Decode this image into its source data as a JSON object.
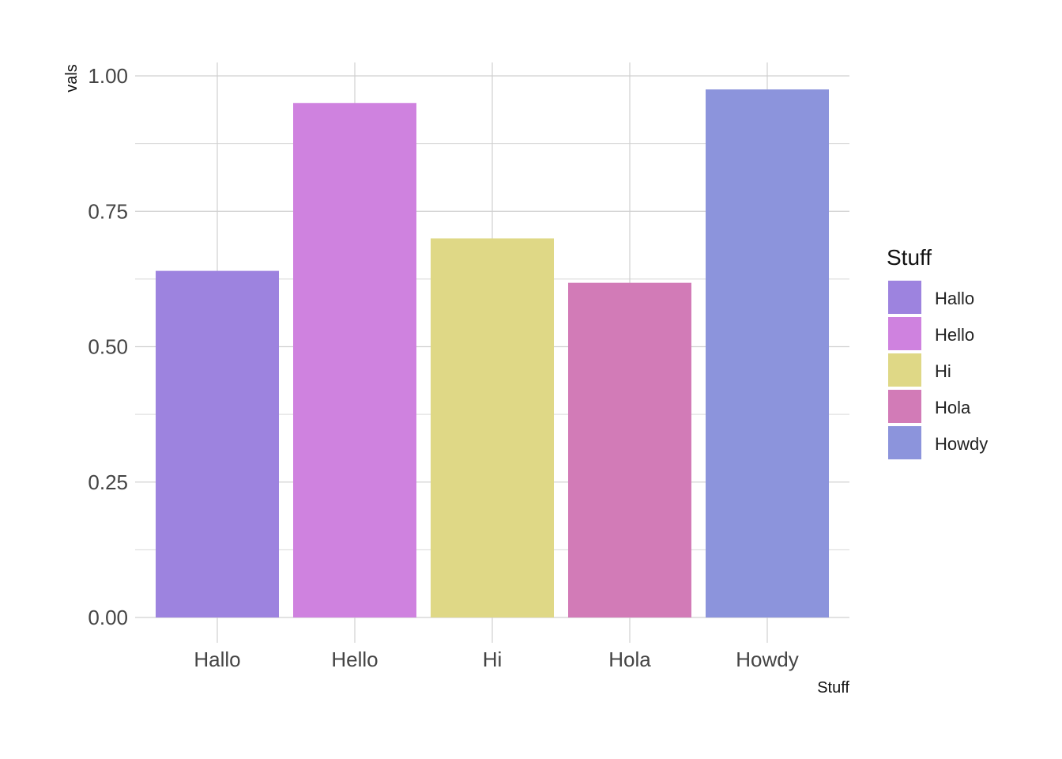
{
  "chart_data": {
    "type": "bar",
    "categories": [
      "Hallo",
      "Hello",
      "Hi",
      "Hola",
      "Howdy"
    ],
    "values": [
      0.64,
      0.95,
      0.7,
      0.618,
      0.975
    ],
    "colors": [
      "#9d83df",
      "#cf82df",
      "#dfd886",
      "#d27bb7",
      "#8c94dc"
    ],
    "title": "",
    "xlabel": "Stuff",
    "ylabel": "vals",
    "ylim": [
      0,
      1.0
    ],
    "yticks": [
      "0.00",
      "0.25",
      "0.50",
      "0.75",
      "1.00"
    ],
    "grid": true,
    "legend": {
      "title": "Stuff",
      "position": "right",
      "entries": [
        "Hallo",
        "Hello",
        "Hi",
        "Hola",
        "Howdy"
      ]
    }
  }
}
